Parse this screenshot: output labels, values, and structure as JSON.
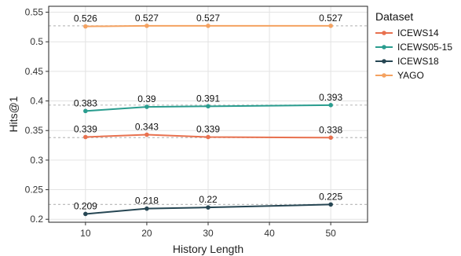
{
  "chart_data": {
    "type": "line",
    "xlabel": "History Length",
    "ylabel": "Hits@1",
    "x": [
      10,
      20,
      30,
      50
    ],
    "xticks": [
      10,
      20,
      30,
      40,
      50
    ],
    "xlim": [
      4,
      56
    ],
    "ylim": [
      0.195,
      0.56
    ],
    "yticks": [
      0.2,
      0.25,
      0.3,
      0.35,
      0.4,
      0.45,
      0.5,
      0.55
    ],
    "yticklabels": [
      "0.2",
      "0.25",
      "0.3",
      "0.35",
      "0.4",
      "0.45",
      "0.5",
      "0.55"
    ],
    "grid": true,
    "legend": {
      "title": "Dataset",
      "position": "right"
    },
    "series": [
      {
        "name": "ICEWS14",
        "color": "#E8714F",
        "values": [
          0.339,
          0.343,
          0.339,
          0.338
        ],
        "labels": [
          "0.339",
          "0.343",
          "0.339",
          "0.338"
        ]
      },
      {
        "name": "ICEWS05-15",
        "color": "#2A9D8F",
        "values": [
          0.383,
          0.39,
          0.391,
          0.393
        ],
        "labels": [
          "0.383",
          "0.39",
          "0.391",
          "0.393"
        ]
      },
      {
        "name": "ICEWS18",
        "color": "#264653",
        "values": [
          0.209,
          0.218,
          0.22,
          0.225
        ],
        "labels": [
          "0.209",
          "0.218",
          "0.22",
          "0.225"
        ]
      },
      {
        "name": "YAGO",
        "color": "#F4A261",
        "values": [
          0.526,
          0.527,
          0.527,
          0.527
        ],
        "labels": [
          "0.526",
          "0.527",
          "0.527",
          "0.527"
        ]
      }
    ]
  }
}
